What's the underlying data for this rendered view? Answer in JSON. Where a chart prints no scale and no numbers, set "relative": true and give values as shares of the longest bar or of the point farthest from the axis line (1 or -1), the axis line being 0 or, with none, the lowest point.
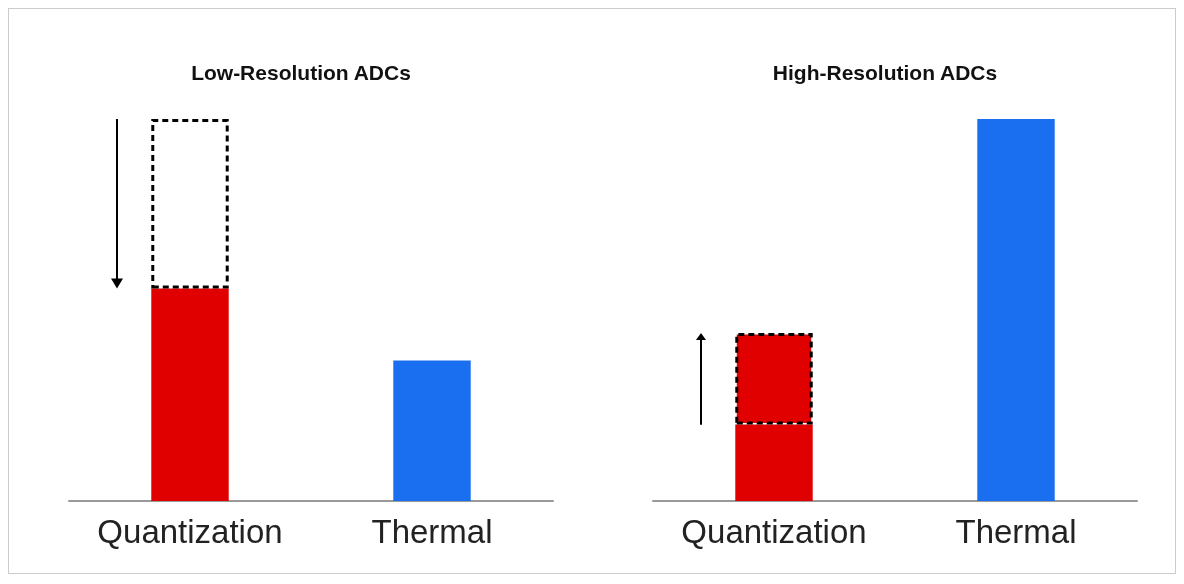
{
  "chart_data": [
    {
      "type": "bar",
      "title": "Low-Resolution ADCs",
      "relative": true,
      "stacked": true,
      "categories": [
        "Quantization",
        "Thermal"
      ],
      "series": [
        {
          "colors": [
            "#e00000",
            "#1a6ff0"
          ],
          "values": [
            0.556,
            0.368
          ]
        },
        {
          "color": "#ffffff",
          "line_style": "dashed",
          "values": [
            0.444,
            null
          ]
        }
      ]
    },
    {
      "type": "bar",
      "title": "High-Resolution ADCs",
      "relative": true,
      "stacked": true,
      "categories": [
        "Quantization",
        "Thermal"
      ],
      "series": [
        {
          "colors": [
            "#e00000",
            "#1a6ff0"
          ],
          "values": [
            0.2,
            1
          ]
        },
        {
          "color": "#e00000",
          "line_style": "dashed",
          "values": [
            0.24,
            null
          ]
        }
      ]
    }
  ]
}
